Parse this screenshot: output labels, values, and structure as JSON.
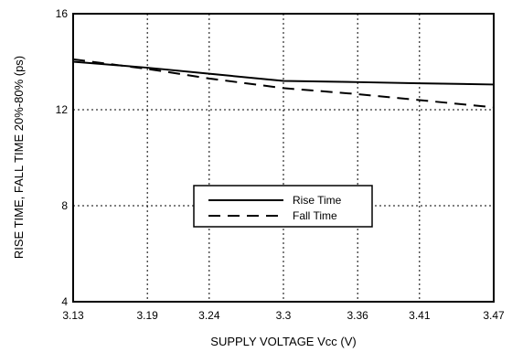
{
  "chart_data": {
    "type": "line",
    "xlabel": "SUPPLY VOLTAGE Vcc (V)",
    "ylabel": "RISE TIME, FALL TIME 20%-80% (ps)",
    "x_ticks": [
      3.13,
      3.19,
      3.24,
      3.3,
      3.36,
      3.41,
      3.47
    ],
    "x_tick_labels": [
      "3.13",
      "3.19",
      "3.24",
      "3.3",
      "3.36",
      "3.41",
      "3.47"
    ],
    "y_ticks": [
      4,
      8,
      12,
      16
    ],
    "y_tick_labels": [
      "4",
      "8",
      "12",
      "16"
    ],
    "xlim": [
      3.13,
      3.47
    ],
    "ylim": [
      4,
      16
    ],
    "grid": true,
    "legend_position": "center",
    "series": [
      {
        "name": "Rise Time",
        "style": "solid",
        "x": [
          3.13,
          3.19,
          3.24,
          3.3,
          3.36,
          3.41,
          3.47
        ],
        "y": [
          14.0,
          13.75,
          13.5,
          13.2,
          13.15,
          13.1,
          13.05
        ]
      },
      {
        "name": "Fall Time",
        "style": "dashed",
        "x": [
          3.13,
          3.19,
          3.24,
          3.3,
          3.36,
          3.41,
          3.47
        ],
        "y": [
          14.1,
          13.7,
          13.3,
          12.9,
          12.65,
          12.4,
          12.1
        ]
      }
    ]
  }
}
